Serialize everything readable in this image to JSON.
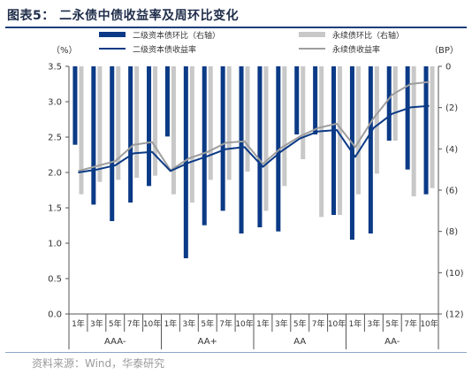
{
  "figure_title": "图表5：  二永债中债收益率及周环比变化",
  "source_note": "资料来源：Wind，华泰研究",
  "colors": {
    "navy": "#0b3a86",
    "gray_bar": "#c8c8c8",
    "gray_line": "#9e9e9e",
    "title_rule": "#1f3d7a"
  },
  "chart_data": {
    "type": "bar+line",
    "left_axis": {
      "unit_label": "（%）",
      "min": 0,
      "max": 3.5,
      "ticks": [
        "0.0",
        "0.5",
        "1.0",
        "1.5",
        "2.0",
        "2.5",
        "3.0",
        "3.5"
      ]
    },
    "right_axis": {
      "unit_label": "（BP）",
      "min": 0,
      "max": -12,
      "inverted": true,
      "ticks": [
        "0",
        "(2)",
        "(4)",
        "(6)",
        "(8)",
        "(10)",
        "(12)"
      ]
    },
    "legend": [
      {
        "name": "二级资本债环比（右轴）",
        "kind": "bar",
        "color": "#0b3a86"
      },
      {
        "name": "永续债环比（右轴）",
        "kind": "bar",
        "color": "#c8c8c8"
      },
      {
        "name": "二级资本债收益率",
        "kind": "line",
        "color": "#0b3a86"
      },
      {
        "name": "永续债收益率",
        "kind": "line",
        "color": "#9e9e9e"
      }
    ],
    "categories": [
      "1年",
      "3年",
      "5年",
      "7年",
      "10年",
      "1年",
      "3年",
      "5年",
      "7年",
      "10年",
      "1年",
      "3年",
      "5年",
      "7年",
      "10年",
      "1年",
      "3年",
      "5年",
      "7年",
      "10年"
    ],
    "groups": [
      "AAA-",
      "AA+",
      "AA",
      "AA-"
    ],
    "series": [
      {
        "name": "二级资本债环比（右轴）",
        "axis": "right",
        "values": [
          -3.8,
          -6.7,
          -7.5,
          -6.6,
          -5.8,
          -3.4,
          -9.3,
          -7.7,
          -7.0,
          -8.1,
          -7.8,
          -8.0,
          -3.3,
          -3.3,
          -7.2,
          -8.4,
          -8.1,
          -3.6,
          -5.0,
          -6.2
        ]
      },
      {
        "name": "永续债环比（右轴）",
        "axis": "right",
        "values": [
          -6.2,
          -5.6,
          -5.5,
          -5.4,
          -5.3,
          -6.2,
          -6.6,
          -5.5,
          -5.5,
          -5.1,
          -7.0,
          -5.8,
          -4.5,
          -7.3,
          -7.2,
          -6.2,
          -5.2,
          -3.6,
          -6.3,
          -5.9
        ]
      },
      {
        "name": "二级资本债收益率",
        "axis": "left",
        "values": [
          2.0,
          2.04,
          2.1,
          2.27,
          2.29,
          2.02,
          2.14,
          2.23,
          2.33,
          2.36,
          2.08,
          2.3,
          2.48,
          2.58,
          2.6,
          2.22,
          2.63,
          2.83,
          2.92,
          2.94
        ]
      },
      {
        "name": "永续债收益率",
        "axis": "left",
        "values": [
          2.02,
          2.09,
          2.16,
          2.39,
          2.43,
          2.03,
          2.2,
          2.29,
          2.42,
          2.44,
          2.12,
          2.35,
          2.51,
          2.63,
          2.69,
          2.36,
          2.77,
          3.1,
          3.25,
          3.28
        ]
      }
    ],
    "grid": false
  }
}
